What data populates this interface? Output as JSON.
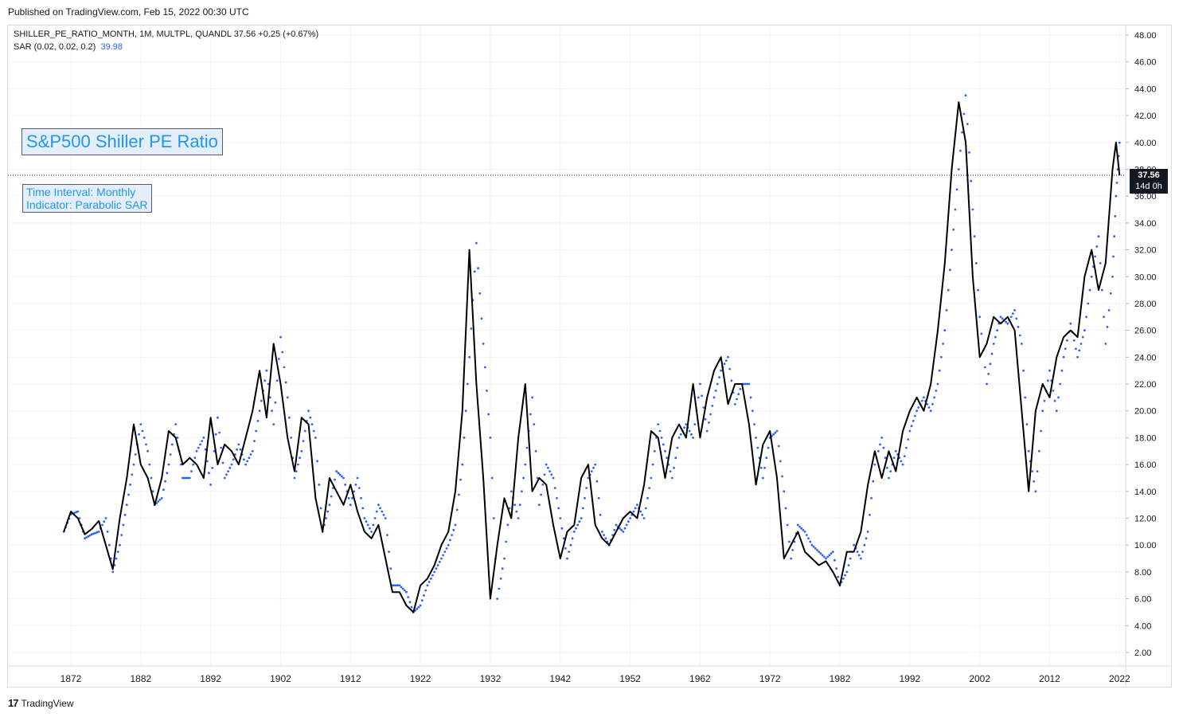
{
  "header": {
    "published": "Published on TradingView.com, Feb 15, 2022 00:30 UTC"
  },
  "legend": {
    "symbol_line": "SHILLER_PE_RATIO_MONTH, 1M, MULTPL, QUANDL  37.56  +0.25 (+0.67%)",
    "sar_label": "SAR (0.02, 0.02, 0.2)",
    "sar_value": "39.98"
  },
  "annotations": {
    "title_box": "S&P500 Shiller PE Ratio",
    "info_line1": "Time Interval: Monthly",
    "info_line2": "Indicator: Parabolic SAR"
  },
  "price_tag": {
    "price": "37.56",
    "countdown": "14d 0h"
  },
  "footer": {
    "logo": "17",
    "brand": "TradingView"
  },
  "colors": {
    "line": "#000000",
    "sar": "#2962ff",
    "accent": "#2196f3",
    "grid": "#f0f3fa"
  },
  "chart_data": {
    "type": "line",
    "title": "",
    "xlabel": "",
    "ylabel": "",
    "x_tick_labels": [
      "1872",
      "1882",
      "1892",
      "1902",
      "1912",
      "1922",
      "1932",
      "1942",
      "1952",
      "1962",
      "1972",
      "1982",
      "1992",
      "2002",
      "2012",
      "2022"
    ],
    "y_tick_labels": [
      "2.00",
      "4.00",
      "6.00",
      "8.00",
      "10.00",
      "12.00",
      "14.00",
      "16.00",
      "18.00",
      "20.00",
      "22.00",
      "24.00",
      "26.00",
      "28.00",
      "30.00",
      "32.00",
      "34.00",
      "36.00",
      "38.00",
      "40.00",
      "42.00",
      "44.00",
      "46.00",
      "48.00"
    ],
    "xlim": [
      1871,
      2022.5
    ],
    "ylim": [
      1,
      49
    ],
    "last_value": 37.56,
    "grid": true,
    "series": [
      {
        "name": "SHILLER_PE_RATIO_MONTH",
        "points": [
          [
            1871,
            11
          ],
          [
            1872,
            12.5
          ],
          [
            1873,
            12
          ],
          [
            1874,
            10.8
          ],
          [
            1875,
            11.2
          ],
          [
            1876,
            11.8
          ],
          [
            1877,
            10
          ],
          [
            1878,
            8.2
          ],
          [
            1879,
            12
          ],
          [
            1880,
            15
          ],
          [
            1881,
            19
          ],
          [
            1882,
            16
          ],
          [
            1883,
            15
          ],
          [
            1884,
            13
          ],
          [
            1885,
            15
          ],
          [
            1886,
            18.5
          ],
          [
            1887,
            18
          ],
          [
            1888,
            16
          ],
          [
            1889,
            16.5
          ],
          [
            1890,
            16
          ],
          [
            1891,
            15
          ],
          [
            1892,
            19.5
          ],
          [
            1893,
            16
          ],
          [
            1894,
            17.5
          ],
          [
            1895,
            17
          ],
          [
            1896,
            16
          ],
          [
            1897,
            18
          ],
          [
            1898,
            20
          ],
          [
            1899,
            23
          ],
          [
            1900,
            19.5
          ],
          [
            1901,
            25
          ],
          [
            1902,
            22
          ],
          [
            1903,
            18
          ],
          [
            1904,
            15.5
          ],
          [
            1905,
            19.5
          ],
          [
            1906,
            19
          ],
          [
            1907,
            13.5
          ],
          [
            1908,
            11
          ],
          [
            1909,
            15
          ],
          [
            1910,
            14
          ],
          [
            1911,
            13
          ],
          [
            1912,
            14.5
          ],
          [
            1913,
            12.5
          ],
          [
            1914,
            11
          ],
          [
            1915,
            10.5
          ],
          [
            1916,
            11.5
          ],
          [
            1917,
            9
          ],
          [
            1918,
            6.5
          ],
          [
            1919,
            6.5
          ],
          [
            1920,
            5.5
          ],
          [
            1921,
            5
          ],
          [
            1922,
            7
          ],
          [
            1923,
            7.5
          ],
          [
            1924,
            8.5
          ],
          [
            1925,
            10
          ],
          [
            1926,
            11
          ],
          [
            1927,
            14
          ],
          [
            1928,
            20
          ],
          [
            1929,
            32
          ],
          [
            1930,
            22
          ],
          [
            1931,
            15
          ],
          [
            1932,
            6
          ],
          [
            1933,
            10
          ],
          [
            1934,
            13.5
          ],
          [
            1935,
            12
          ],
          [
            1936,
            18
          ],
          [
            1937,
            22
          ],
          [
            1938,
            14
          ],
          [
            1939,
            15
          ],
          [
            1940,
            14.5
          ],
          [
            1941,
            11.5
          ],
          [
            1942,
            9
          ],
          [
            1943,
            11
          ],
          [
            1944,
            11.5
          ],
          [
            1945,
            15
          ],
          [
            1946,
            16
          ],
          [
            1947,
            11.5
          ],
          [
            1948,
            10.5
          ],
          [
            1949,
            10
          ],
          [
            1950,
            11
          ],
          [
            1951,
            12
          ],
          [
            1952,
            12.5
          ],
          [
            1953,
            12
          ],
          [
            1954,
            14.5
          ],
          [
            1955,
            18.5
          ],
          [
            1956,
            18
          ],
          [
            1957,
            15
          ],
          [
            1958,
            18
          ],
          [
            1959,
            19
          ],
          [
            1960,
            18
          ],
          [
            1961,
            22
          ],
          [
            1962,
            18
          ],
          [
            1963,
            21
          ],
          [
            1964,
            23
          ],
          [
            1965,
            24
          ],
          [
            1966,
            20.5
          ],
          [
            1967,
            22
          ],
          [
            1968,
            22
          ],
          [
            1969,
            19
          ],
          [
            1970,
            14.5
          ],
          [
            1971,
            17.5
          ],
          [
            1972,
            18.5
          ],
          [
            1973,
            15
          ],
          [
            1974,
            9
          ],
          [
            1975,
            10
          ],
          [
            1976,
            11
          ],
          [
            1977,
            9.5
          ],
          [
            1978,
            9
          ],
          [
            1979,
            8.5
          ],
          [
            1980,
            8.8
          ],
          [
            1981,
            8
          ],
          [
            1982,
            7
          ],
          [
            1983,
            9.5
          ],
          [
            1984,
            9.5
          ],
          [
            1985,
            11
          ],
          [
            1986,
            14.5
          ],
          [
            1987,
            17
          ],
          [
            1988,
            15
          ],
          [
            1989,
            17
          ],
          [
            1990,
            15.5
          ],
          [
            1991,
            18.5
          ],
          [
            1992,
            20
          ],
          [
            1993,
            21
          ],
          [
            1994,
            20
          ],
          [
            1995,
            22
          ],
          [
            1996,
            26
          ],
          [
            1997,
            31
          ],
          [
            1998,
            38
          ],
          [
            1999,
            43
          ],
          [
            2000,
            40
          ],
          [
            2001,
            30
          ],
          [
            2002,
            24
          ],
          [
            2003,
            25
          ],
          [
            2004,
            27
          ],
          [
            2005,
            26.5
          ],
          [
            2006,
            27
          ],
          [
            2007,
            26
          ],
          [
            2008,
            20
          ],
          [
            2009,
            14
          ],
          [
            2010,
            20
          ],
          [
            2011,
            22
          ],
          [
            2012,
            21
          ],
          [
            2013,
            24
          ],
          [
            2014,
            25.5
          ],
          [
            2015,
            26
          ],
          [
            2016,
            25.5
          ],
          [
            2017,
            30
          ],
          [
            2018,
            32
          ],
          [
            2019,
            29
          ],
          [
            2020,
            31
          ],
          [
            2021,
            38
          ],
          [
            2021.5,
            40
          ],
          [
            2022,
            37.56
          ]
        ]
      },
      {
        "name": "SAR (0.02, 0.02, 0.2)",
        "points": [
          [
            1871,
            11
          ],
          [
            1872,
            12.3
          ],
          [
            1873,
            12.5
          ],
          [
            1874,
            10.5
          ],
          [
            1875,
            10.8
          ],
          [
            1876,
            11
          ],
          [
            1877,
            12
          ],
          [
            1878,
            8
          ],
          [
            1879,
            10
          ],
          [
            1880,
            13
          ],
          [
            1881,
            16
          ],
          [
            1882,
            19
          ],
          [
            1883,
            17
          ],
          [
            1884,
            13
          ],
          [
            1885,
            13.5
          ],
          [
            1886,
            16
          ],
          [
            1887,
            19
          ],
          [
            1888,
            15
          ],
          [
            1889,
            15
          ],
          [
            1890,
            17
          ],
          [
            1891,
            18
          ],
          [
            1892,
            14.5
          ],
          [
            1893,
            19.5
          ],
          [
            1894,
            15
          ],
          [
            1895,
            16
          ],
          [
            1896,
            17.5
          ],
          [
            1897,
            16
          ],
          [
            1898,
            17
          ],
          [
            1899,
            20
          ],
          [
            1900,
            23
          ],
          [
            1901,
            19
          ],
          [
            1902,
            25.5
          ],
          [
            1903,
            21
          ],
          [
            1904,
            15
          ],
          [
            1905,
            17
          ],
          [
            1906,
            20
          ],
          [
            1907,
            18
          ],
          [
            1908,
            11
          ],
          [
            1909,
            13
          ],
          [
            1910,
            15.5
          ],
          [
            1911,
            15
          ],
          [
            1912,
            13
          ],
          [
            1913,
            15
          ],
          [
            1914,
            12
          ],
          [
            1915,
            11
          ],
          [
            1916,
            13
          ],
          [
            1917,
            12
          ],
          [
            1918,
            7
          ],
          [
            1919,
            7
          ],
          [
            1920,
            6.5
          ],
          [
            1921,
            5
          ],
          [
            1922,
            5.5
          ],
          [
            1923,
            7
          ],
          [
            1924,
            8
          ],
          [
            1925,
            9
          ],
          [
            1926,
            10
          ],
          [
            1927,
            11.5
          ],
          [
            1928,
            16
          ],
          [
            1929,
            24
          ],
          [
            1930,
            32.5
          ],
          [
            1931,
            25
          ],
          [
            1932,
            18
          ],
          [
            1933,
            6
          ],
          [
            1934,
            9
          ],
          [
            1935,
            14
          ],
          [
            1936,
            12
          ],
          [
            1937,
            16
          ],
          [
            1938,
            21
          ],
          [
            1939,
            13
          ],
          [
            1940,
            16
          ],
          [
            1941,
            15
          ],
          [
            1942,
            12
          ],
          [
            1943,
            9
          ],
          [
            1944,
            11
          ],
          [
            1945,
            12
          ],
          [
            1946,
            15
          ],
          [
            1947,
            16
          ],
          [
            1948,
            11
          ],
          [
            1949,
            10
          ],
          [
            1950,
            11.5
          ],
          [
            1951,
            11
          ],
          [
            1952,
            12
          ],
          [
            1953,
            13
          ],
          [
            1954,
            12
          ],
          [
            1955,
            15
          ],
          [
            1956,
            19
          ],
          [
            1957,
            17
          ],
          [
            1958,
            15
          ],
          [
            1959,
            18
          ],
          [
            1960,
            19
          ],
          [
            1961,
            18
          ],
          [
            1962,
            22
          ],
          [
            1963,
            18.5
          ],
          [
            1964,
            21
          ],
          [
            1965,
            23
          ],
          [
            1966,
            24
          ],
          [
            1967,
            20.5
          ],
          [
            1968,
            22
          ],
          [
            1969,
            22
          ],
          [
            1970,
            18
          ],
          [
            1971,
            15
          ],
          [
            1972,
            18
          ],
          [
            1973,
            18.5
          ],
          [
            1974,
            14
          ],
          [
            1975,
            9
          ],
          [
            1976,
            11.5
          ],
          [
            1977,
            11
          ],
          [
            1978,
            10
          ],
          [
            1979,
            9.5
          ],
          [
            1980,
            9
          ],
          [
            1981,
            9.5
          ],
          [
            1982,
            7
          ],
          [
            1983,
            8
          ],
          [
            1984,
            10
          ],
          [
            1985,
            9
          ],
          [
            1986,
            11
          ],
          [
            1987,
            16
          ],
          [
            1988,
            18
          ],
          [
            1989,
            15
          ],
          [
            1990,
            17
          ],
          [
            1991,
            16
          ],
          [
            1992,
            18.5
          ],
          [
            1993,
            20
          ],
          [
            1994,
            21
          ],
          [
            1995,
            20
          ],
          [
            1996,
            22
          ],
          [
            1997,
            26
          ],
          [
            1998,
            32
          ],
          [
            1999,
            38
          ],
          [
            2000,
            43.5
          ],
          [
            2001,
            35
          ],
          [
            2002,
            27
          ],
          [
            2003,
            22
          ],
          [
            2004,
            25
          ],
          [
            2005,
            27
          ],
          [
            2006,
            26.5
          ],
          [
            2007,
            27.5
          ],
          [
            2008,
            25
          ],
          [
            2009,
            17
          ],
          [
            2010,
            14
          ],
          [
            2011,
            20
          ],
          [
            2012,
            23
          ],
          [
            2013,
            20
          ],
          [
            2014,
            24
          ],
          [
            2015,
            26.5
          ],
          [
            2016,
            24
          ],
          [
            2017,
            26
          ],
          [
            2018,
            30
          ],
          [
            2019,
            33
          ],
          [
            2020,
            25
          ],
          [
            2021,
            30
          ],
          [
            2021.5,
            36
          ],
          [
            2022,
            39.98
          ]
        ]
      }
    ]
  }
}
